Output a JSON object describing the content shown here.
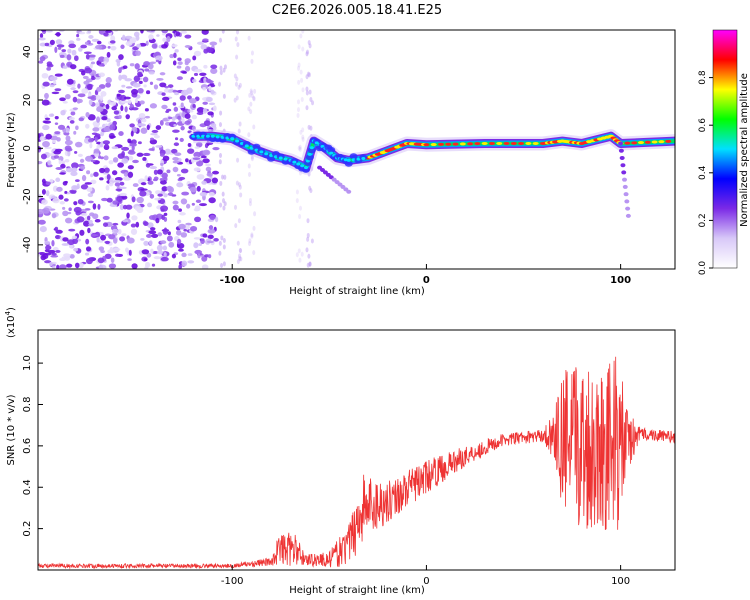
{
  "page_title": "C2E6.2026.005.18.41.E25",
  "chart_data": [
    {
      "type": "heatmap",
      "id": "spectrogram",
      "xlabel": "Height of straight line (km)",
      "ylabel": "Frequency (Hz)",
      "xlim": [
        -200,
        128
      ],
      "ylim": [
        -50,
        49
      ],
      "x_ticks": [
        -100,
        0,
        100
      ],
      "x_tick_labels": [
        "-100",
        "0",
        "100"
      ],
      "y_ticks": [
        -40,
        -20,
        0,
        20,
        40
      ],
      "y_tick_labels": [
        "-40",
        "-20",
        "0",
        "20",
        "40"
      ],
      "colorbar": {
        "label": "Normalized spectral amplitude",
        "range": [
          0,
          1
        ],
        "ticks": [
          0.0,
          0.2,
          0.4,
          0.6,
          0.8
        ],
        "tick_labels": [
          "0.0",
          "0.2",
          "0.4",
          "0.6",
          "0.8"
        ],
        "stops": [
          "#ffffff",
          "#d8c8f8",
          "#7b2ae6",
          "#0000ff",
          "#00e0ff",
          "#00ff00",
          "#ffff00",
          "#ff0000",
          "#ff00ff"
        ]
      },
      "noise_region_km": [
        -200,
        -108
      ],
      "signal_ridge": [
        {
          "x": -120,
          "y": 5
        },
        {
          "x": -110,
          "y": 5
        },
        {
          "x": -100,
          "y": 4
        },
        {
          "x": -90,
          "y": 0
        },
        {
          "x": -80,
          "y": -3
        },
        {
          "x": -70,
          "y": -5
        },
        {
          "x": -62,
          "y": -8
        },
        {
          "x": -58,
          "y": 3
        },
        {
          "x": -52,
          "y": 0
        },
        {
          "x": -46,
          "y": -4
        },
        {
          "x": -40,
          "y": -5
        },
        {
          "x": -30,
          "y": -4
        },
        {
          "x": -20,
          "y": -1
        },
        {
          "x": -10,
          "y": 2
        },
        {
          "x": 0,
          "y": 1.5
        },
        {
          "x": 30,
          "y": 2
        },
        {
          "x": 60,
          "y": 2
        },
        {
          "x": 70,
          "y": 3
        },
        {
          "x": 80,
          "y": 2
        },
        {
          "x": 95,
          "y": 5
        },
        {
          "x": 100,
          "y": 2
        },
        {
          "x": 128,
          "y": 3
        }
      ]
    },
    {
      "type": "line",
      "id": "snr",
      "xlabel": "Height of straight line (km)",
      "ylabel": "SNR (10 * v/v)",
      "y_multiplier": "(x10",
      "y_multiplier_exp": "4",
      "y_multiplier_close": ")",
      "xlim": [
        -200,
        128
      ],
      "ylim": [
        0,
        1.16
      ],
      "x_ticks": [
        -100,
        0,
        100
      ],
      "x_tick_labels": [
        "-100",
        "0",
        "100"
      ],
      "y_ticks": [
        0.2,
        0.4,
        0.6,
        0.8,
        1.0
      ],
      "y_tick_labels": [
        "0.2",
        "0.4",
        "0.6",
        "0.8",
        "1.0"
      ],
      "color": "#ee3333",
      "envelope": [
        {
          "x": -200,
          "base": 0.02,
          "amp": 0.01
        },
        {
          "x": -100,
          "base": 0.02,
          "amp": 0.01
        },
        {
          "x": -80,
          "base": 0.04,
          "amp": 0.02
        },
        {
          "x": -76,
          "base": 0.1,
          "amp": 0.08
        },
        {
          "x": -68,
          "base": 0.1,
          "amp": 0.08
        },
        {
          "x": -62,
          "base": 0.05,
          "amp": 0.03
        },
        {
          "x": -50,
          "base": 0.05,
          "amp": 0.04
        },
        {
          "x": -40,
          "base": 0.12,
          "amp": 0.1
        },
        {
          "x": -33,
          "base": 0.3,
          "amp": 0.18
        },
        {
          "x": -20,
          "base": 0.33,
          "amp": 0.1
        },
        {
          "x": 0,
          "base": 0.45,
          "amp": 0.08
        },
        {
          "x": 20,
          "base": 0.55,
          "amp": 0.05
        },
        {
          "x": 40,
          "base": 0.63,
          "amp": 0.03
        },
        {
          "x": 60,
          "base": 0.65,
          "amp": 0.03
        },
        {
          "x": 66,
          "base": 0.65,
          "amp": 0.12
        },
        {
          "x": 70,
          "base": 0.62,
          "amp": 0.35
        },
        {
          "x": 80,
          "base": 0.6,
          "amp": 0.42
        },
        {
          "x": 90,
          "base": 0.6,
          "amp": 0.4
        },
        {
          "x": 98,
          "base": 0.6,
          "amp": 0.45
        },
        {
          "x": 104,
          "base": 0.62,
          "amp": 0.15
        },
        {
          "x": 110,
          "base": 0.66,
          "amp": 0.03
        },
        {
          "x": 128,
          "base": 0.64,
          "amp": 0.03
        }
      ]
    }
  ]
}
